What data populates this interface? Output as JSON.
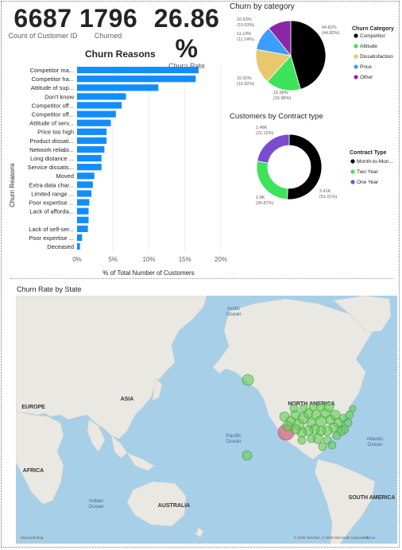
{
  "kpis": [
    {
      "value": "6687",
      "label": "Count of Customer ID"
    },
    {
      "value": "1796",
      "label": "Churned"
    },
    {
      "value": "26.86 %",
      "label": "Churn Rate"
    }
  ],
  "reasons_chart": {
    "title": "Churn Reasons",
    "ylabel": "Churn Reasons",
    "xlabel": "% of Total Number of Customers",
    "xticks": [
      "0%",
      "5%",
      "10%",
      "15%",
      "20%"
    ]
  },
  "category_chart": {
    "title": "Churn by category",
    "legend_title": "Churn Category",
    "slice_labels": [
      {
        "line1": "44.82%",
        "line2": "(44.82%)"
      },
      {
        "line1": "15.98%",
        "line2": "(15.98%)"
      },
      {
        "line1": "15.92%",
        "line2": "(15.92%)"
      },
      {
        "line1": "11.14%",
        "line2": "(11.14%)"
      },
      {
        "line1": "10.63%",
        "line2": "(10.63%)"
      }
    ]
  },
  "contract_chart": {
    "title": "Customers by Contract type",
    "legend_title": "Contract Type",
    "slice_labels": [
      {
        "line1": "3.41K",
        "line2": "(51.01%)"
      },
      {
        "line1": "1.8K",
        "line2": "(26.87%)"
      },
      {
        "line1": "1.48K",
        "line2": "(22.12%)"
      }
    ]
  },
  "map": {
    "title": "Churn Rate by State",
    "labels": {
      "arctic": "Arctic Ocean",
      "europe": "EUROPE",
      "asia": "ASIA",
      "africa": "AFRICA",
      "australia": "AUSTRALIA",
      "indian": "Indian Ocean",
      "pacific": "Pacific Ocean",
      "north_america": "NORTH AMERICA",
      "atlantic": "Atlantic Ocean",
      "south_america": "SOUTH AMERICA"
    },
    "attribution": "© 2025 TomTom, © 2025 Microsoft Corporation",
    "terms": "Terms",
    "logo": "Microsoft Bing"
  },
  "colors": {
    "bar": "#118dff",
    "competitor": "#000000",
    "attitude": "#3de35a",
    "dissatisfaction": "#e8c86c",
    "price": "#3a9dff",
    "other": "#8a27a8",
    "month_to_month": "#000000",
    "two_year": "#3de35a",
    "one_year": "#7b4bd1"
  },
  "chart_data": [
    {
      "type": "bar",
      "title": "Churn Reasons",
      "xlabel": "% of Total Number of Customers",
      "ylabel": "Churn Reasons",
      "xlim": [
        0,
        20
      ],
      "categories": [
        "Competitor ma...",
        "Competitor ha...",
        "Attitude of sup...",
        "Don't know",
        "Competitor off...",
        "Competitor off...",
        "Attitude of serv...",
        "Price too high",
        "Product dissati...",
        "Network reliabi...",
        "Long distance ...",
        "Service dissatis...",
        "Moved",
        "Extra data char...",
        "Limited range ...",
        "Poor expertise ...",
        "Lack of afforda...",
        "",
        "Lack of self-ser...",
        "Poor expertise ...",
        "Deceased"
      ],
      "values": [
        16.9,
        16.5,
        11.3,
        6.8,
        6.2,
        5.4,
        4.7,
        4.1,
        4.1,
        3.8,
        3.4,
        3.4,
        2.4,
        2.2,
        2.0,
        1.7,
        1.6,
        1.6,
        1.5,
        0.7,
        0.4
      ]
    },
    {
      "type": "pie",
      "title": "Churn by category",
      "legend": [
        "Competitor",
        "Attitude",
        "Dissatisfaction",
        "Price",
        "Other"
      ],
      "values": [
        44.82,
        15.98,
        15.92,
        11.14,
        10.63
      ],
      "legend_position": "right"
    },
    {
      "type": "pie",
      "title": "Customers by Contract type",
      "legend": [
        "Month-to-Mon...",
        "Two Year",
        "One Year"
      ],
      "values": [
        3.41,
        1.8,
        1.48
      ],
      "percents": [
        51.01,
        26.87,
        22.12
      ],
      "legend_position": "right"
    }
  ]
}
